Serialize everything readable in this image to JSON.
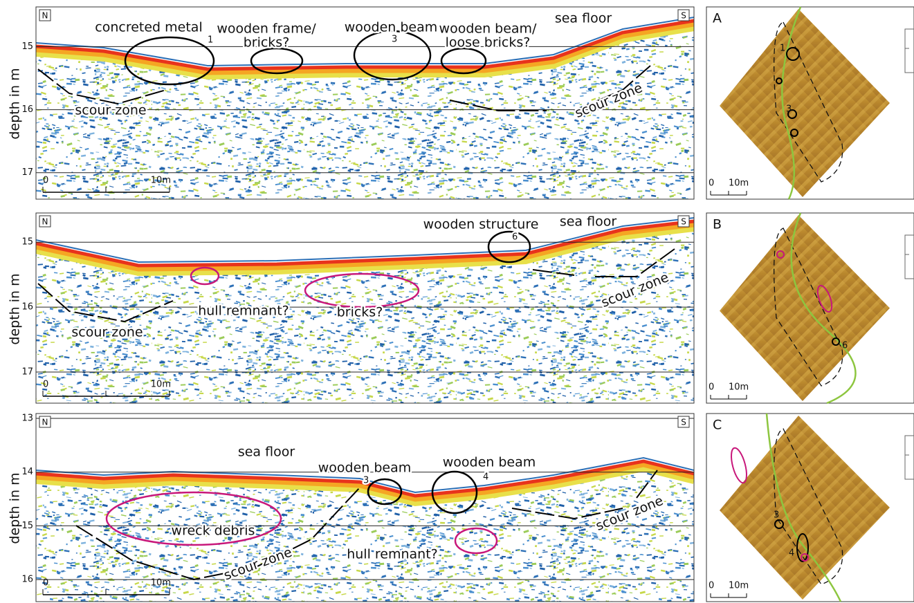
{
  "ylabel": "depth in m",
  "profiles": [
    {
      "left": "N",
      "right": "S",
      "ylim": [
        14.37,
        17.42
      ],
      "yticks": [
        15,
        16,
        17
      ],
      "scale": [
        "0",
        "10m"
      ],
      "annotations": [
        [
          "concreted metal"
        ],
        [
          "wooden frame/",
          "bricks?"
        ],
        [
          "wooden beam"
        ],
        [
          "wooden beam/",
          "loose bricks?"
        ],
        [
          "sea floor"
        ],
        [
          "scour zone"
        ],
        [
          "scour zone"
        ]
      ],
      "markers": [
        "1",
        "3"
      ]
    },
    {
      "left": "N",
      "right": "S",
      "ylim": [
        14.55,
        17.48
      ],
      "yticks": [
        15,
        16,
        17
      ],
      "scale": [
        "0",
        "10m"
      ],
      "annotations": [
        [
          "wooden structure"
        ],
        [
          "sea floor"
        ],
        [
          "hull remnant?"
        ],
        [
          "bricks?"
        ],
        [
          "scour zone"
        ],
        [
          "scour zone"
        ]
      ],
      "markers": [
        "6"
      ]
    },
    {
      "left": "N",
      "right": "S",
      "ylim": [
        12.91,
        16.41
      ],
      "yticks": [
        13,
        14,
        15,
        16
      ],
      "scale": [
        "0",
        "10m"
      ],
      "annotations": [
        [
          "sea floor"
        ],
        [
          "wooden beam"
        ],
        [
          "wooden beam"
        ],
        [
          "wreck debris"
        ],
        [
          "hull remnant?"
        ],
        [
          "scour zone"
        ],
        [
          "scour zone"
        ]
      ],
      "markers": [
        "3",
        "4"
      ]
    }
  ],
  "maps": [
    {
      "label": "A",
      "scale": [
        "0",
        "10m"
      ],
      "markers": [
        "1",
        "3"
      ]
    },
    {
      "label": "B",
      "scale": [
        "0",
        "10m"
      ],
      "markers": [
        "6"
      ]
    },
    {
      "label": "C",
      "scale": [
        "0",
        "10m"
      ],
      "markers": [
        "3",
        "4"
      ]
    }
  ]
}
